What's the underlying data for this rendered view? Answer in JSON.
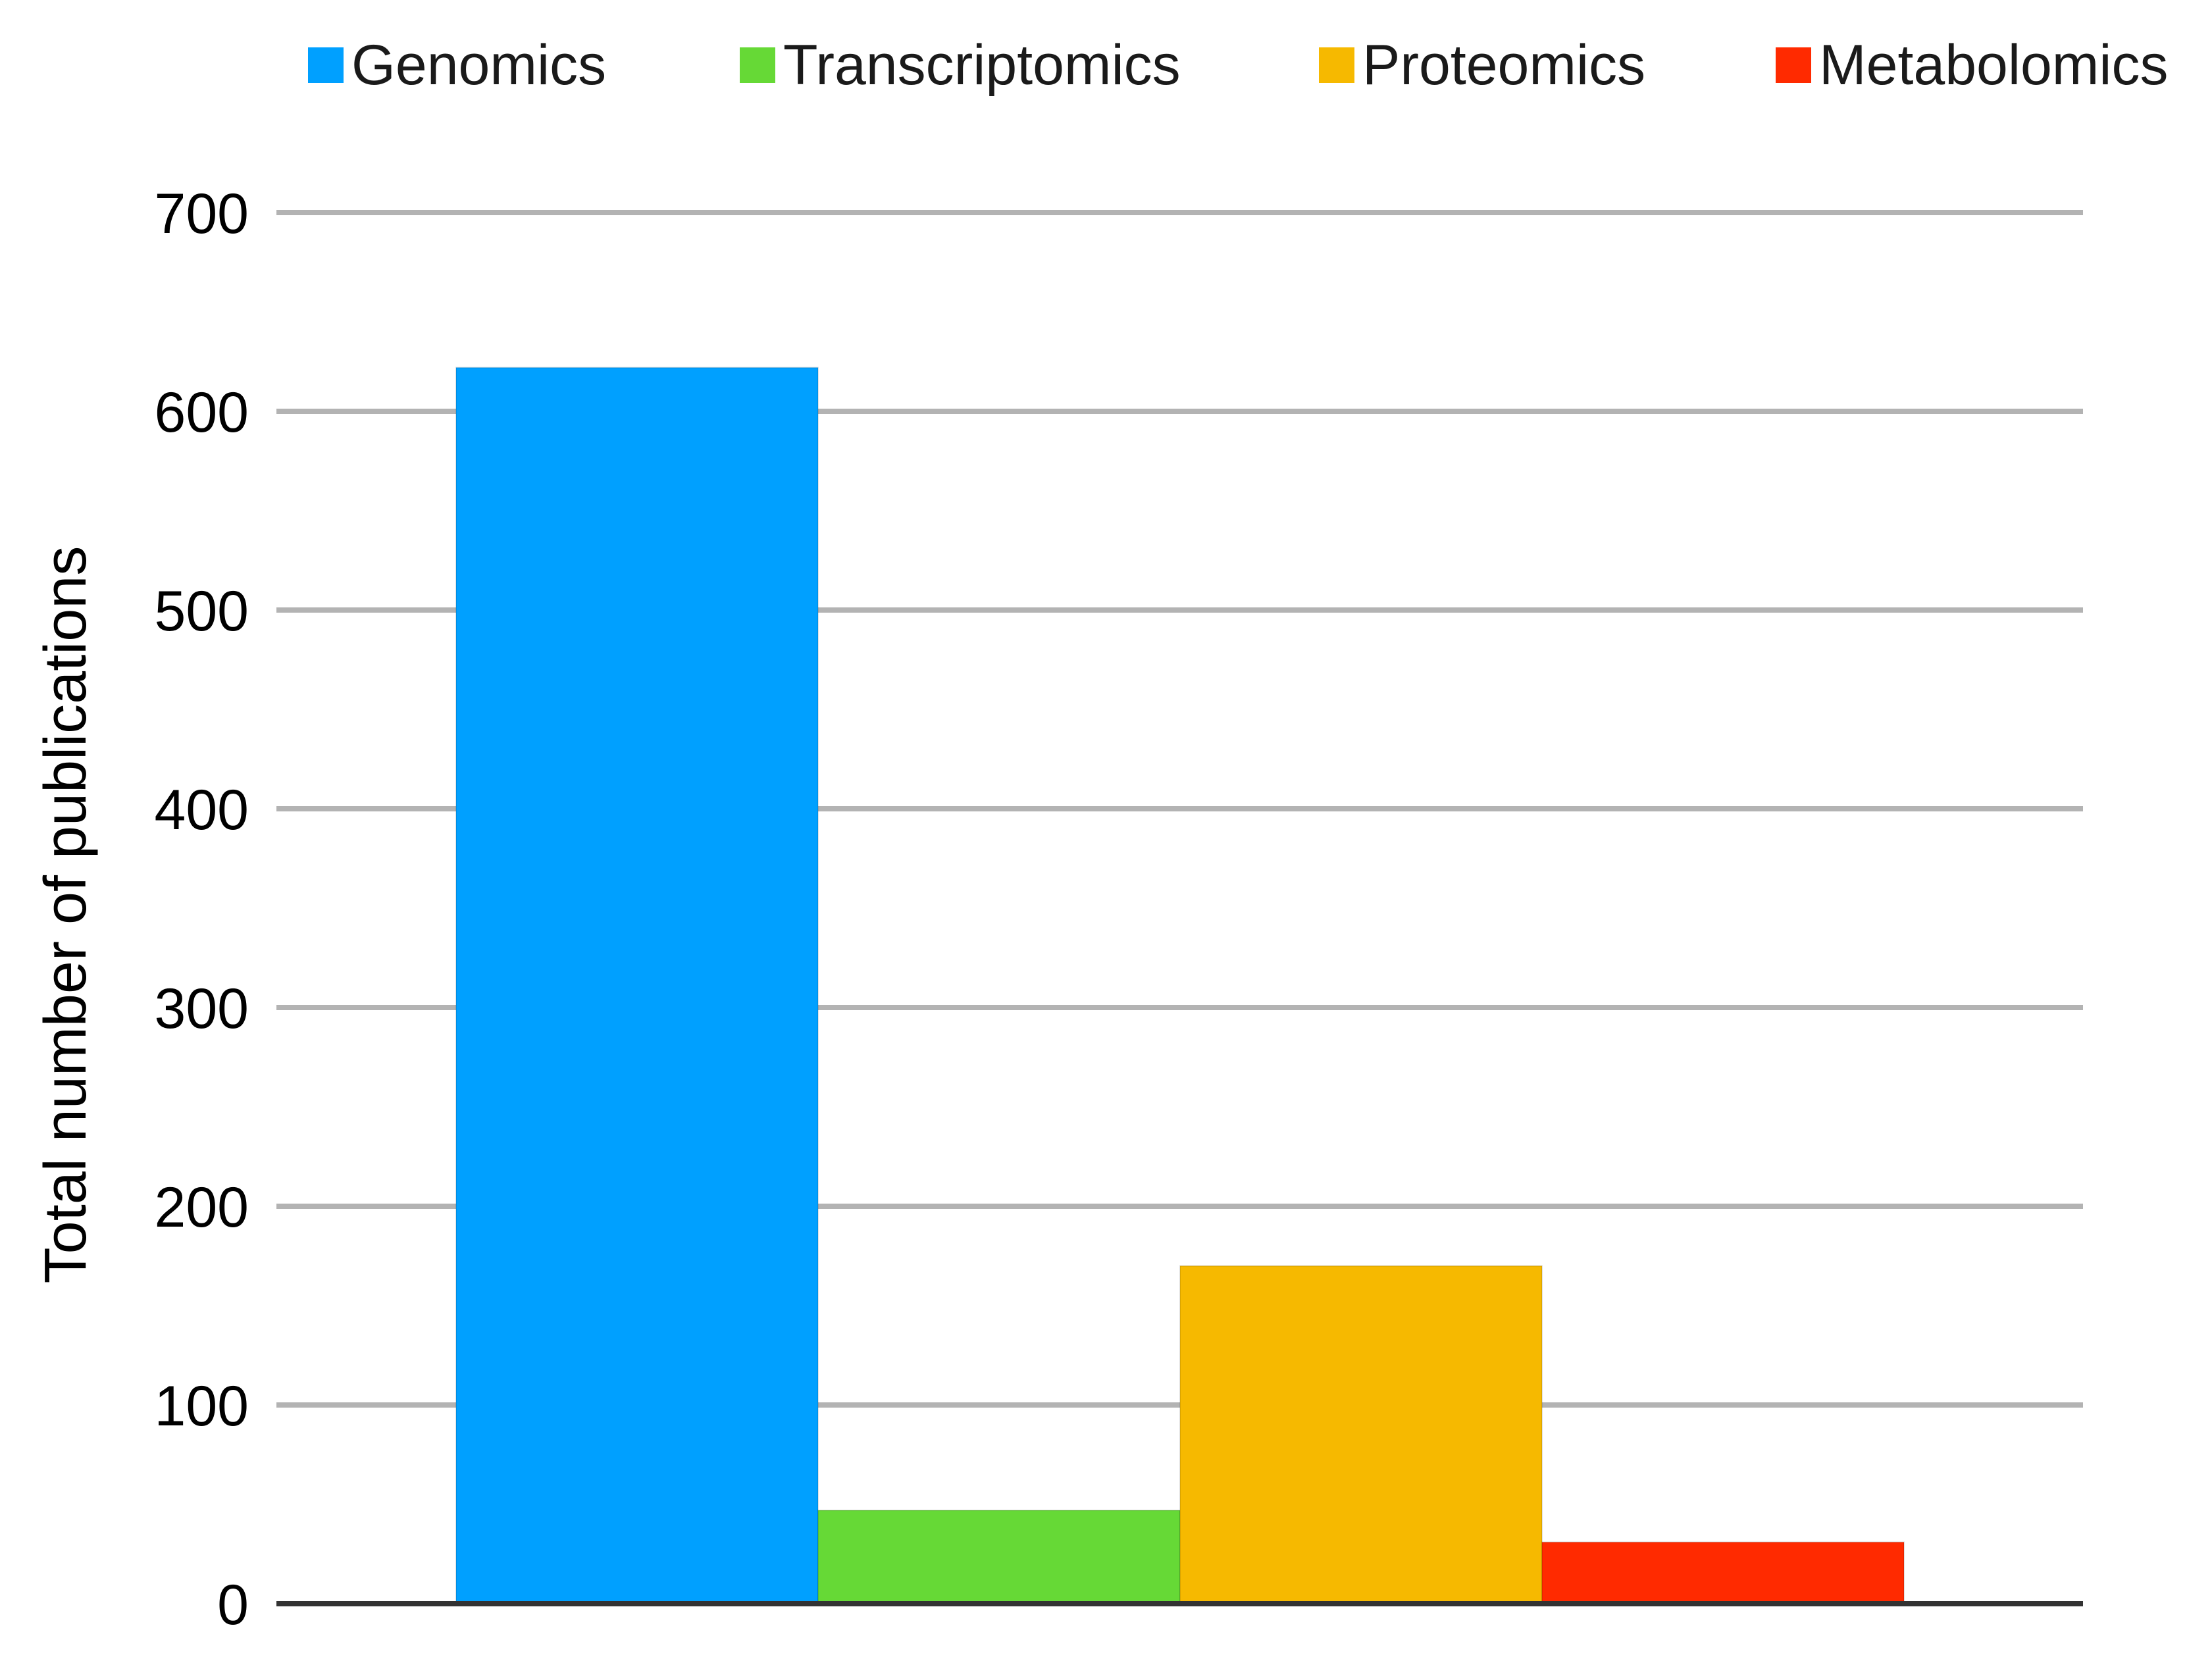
{
  "chart_data": {
    "type": "bar",
    "title": "",
    "xlabel": "",
    "ylabel": "Total number of publications",
    "ylim": [
      0,
      700
    ],
    "yticks": [
      0,
      100,
      200,
      300,
      400,
      500,
      600,
      700
    ],
    "grid": true,
    "legend_position": "top",
    "series": [
      {
        "name": "Genomics",
        "value": 622,
        "color": "#00a0ff"
      },
      {
        "name": "Transcriptomics",
        "value": 47,
        "color": "#66d936"
      },
      {
        "name": "Proteomics",
        "value": 170,
        "color": "#f6b900"
      },
      {
        "name": "Metabolomics",
        "value": 31,
        "color": "#ff2a00"
      }
    ]
  }
}
